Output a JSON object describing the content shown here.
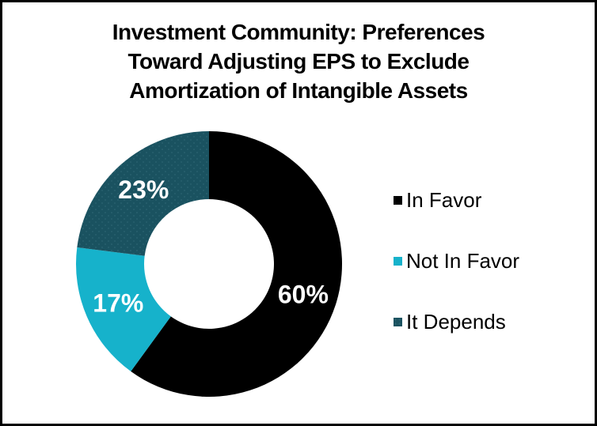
{
  "frame": {
    "border_color": "#000000",
    "background_color": "#ffffff"
  },
  "chart_data": {
    "type": "pie",
    "subtype": "donut",
    "title": "Investment Community: Preferences Toward Adjusting EPS to Exclude Amortization of Intangible Assets",
    "title_lines": [
      "Investment Community: Preferences",
      "Toward Adjusting EPS to Exclude",
      "Amortization of Intangible Assets"
    ],
    "categories": [
      "In Favor",
      "Not In Favor",
      "It Depends"
    ],
    "values": [
      60,
      17,
      23
    ],
    "slice_labels": [
      "60%",
      "17%",
      "23%"
    ],
    "colors": [
      "#000000",
      "#16B2CB",
      "#1A5260"
    ],
    "teal_dot_texture_color": "#2B6371",
    "slice_label_color": "#ffffff",
    "start_angle_deg": 0,
    "direction": "clockwise",
    "donut_hole_ratio": 0.49,
    "legend_position": "right",
    "legend": [
      {
        "label": "In Favor",
        "color": "#000000"
      },
      {
        "label": "Not In Favor",
        "color": "#16B2CB"
      },
      {
        "label": "It Depends",
        "color": "#1A5260"
      }
    ]
  }
}
